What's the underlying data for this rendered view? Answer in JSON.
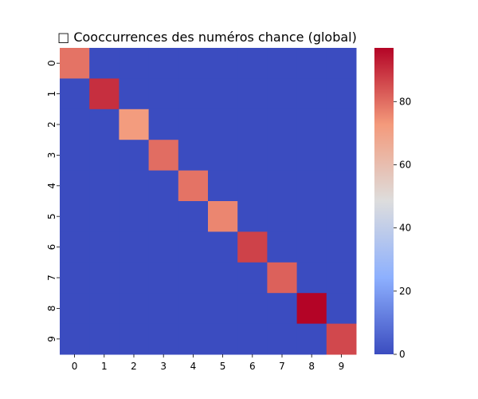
{
  "chart_data": {
    "type": "heatmap",
    "title": "□ Cooccurrences des numéros chance (global)",
    "xlabel": "",
    "ylabel": "",
    "x_categories": [
      "0",
      "1",
      "2",
      "3",
      "4",
      "5",
      "6",
      "7",
      "8",
      "9"
    ],
    "y_categories": [
      "0",
      "1",
      "2",
      "3",
      "4",
      "5",
      "6",
      "7",
      "8",
      "9"
    ],
    "values": [
      [
        79,
        0,
        0,
        0,
        0,
        0,
        0,
        0,
        0,
        0
      ],
      [
        0,
        90,
        0,
        0,
        0,
        0,
        0,
        0,
        0,
        0
      ],
      [
        0,
        0,
        72,
        0,
        0,
        0,
        0,
        0,
        0,
        0
      ],
      [
        0,
        0,
        0,
        80,
        0,
        0,
        0,
        0,
        0,
        0
      ],
      [
        0,
        0,
        0,
        0,
        79,
        0,
        0,
        0,
        0,
        0
      ],
      [
        0,
        0,
        0,
        0,
        0,
        76,
        0,
        0,
        0,
        0
      ],
      [
        0,
        0,
        0,
        0,
        0,
        0,
        87,
        0,
        0,
        0
      ],
      [
        0,
        0,
        0,
        0,
        0,
        0,
        0,
        82,
        0,
        0
      ],
      [
        0,
        0,
        0,
        0,
        0,
        0,
        0,
        0,
        97,
        0
      ],
      [
        0,
        0,
        0,
        0,
        0,
        0,
        0,
        0,
        0,
        86
      ]
    ],
    "value_range": [
      0,
      97
    ],
    "colormap": "coolwarm",
    "colorbar": {
      "ticks": [
        0,
        20,
        40,
        60,
        80
      ],
      "tick_labels": [
        "0",
        "20",
        "40",
        "60",
        "80"
      ]
    },
    "grid": false,
    "legend": "colorbar-right"
  }
}
